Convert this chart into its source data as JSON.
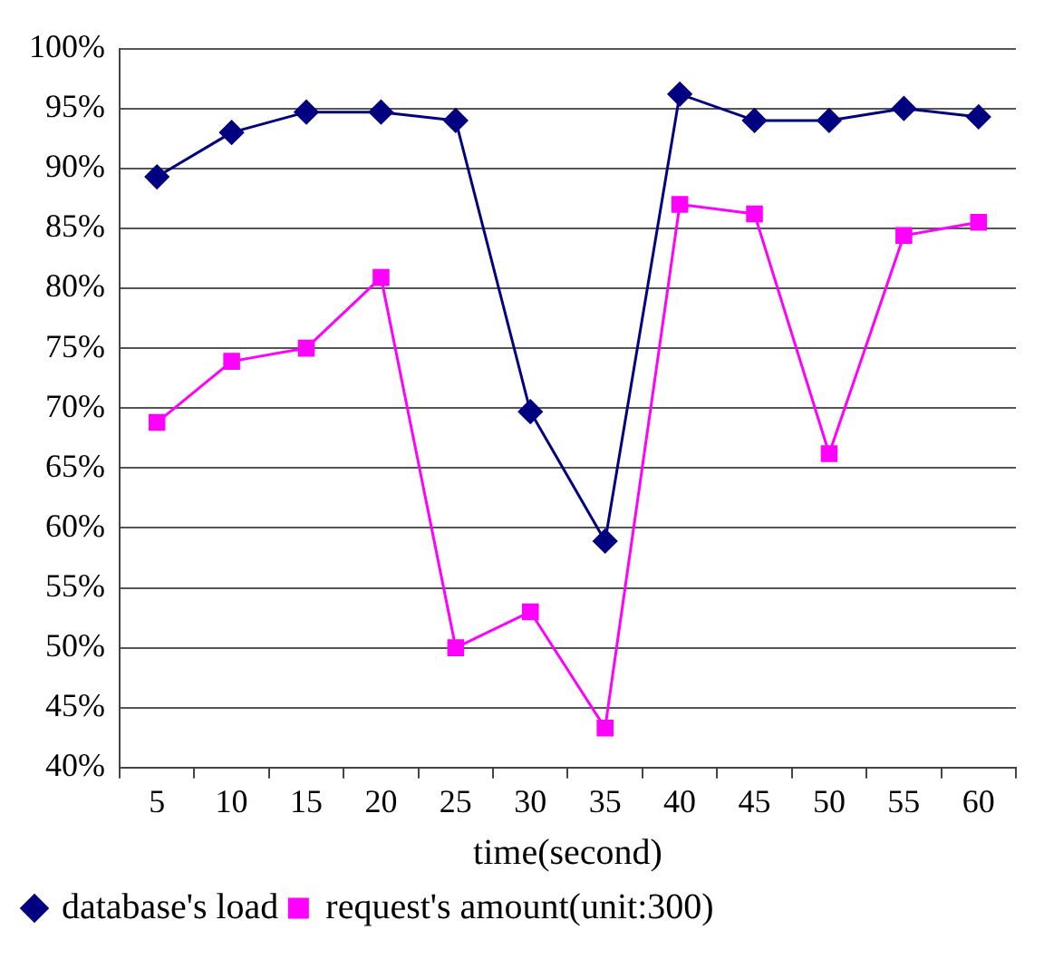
{
  "chart_data": {
    "type": "line",
    "xlabel": "time(second)",
    "categories": [
      "5",
      "10",
      "15",
      "20",
      "25",
      "30",
      "35",
      "40",
      "45",
      "50",
      "55",
      "60"
    ],
    "series": [
      {
        "name": "database's load",
        "color": "#000080",
        "marker": "diamond",
        "values": [
          89.3,
          93,
          94.7,
          94.7,
          94,
          69.7,
          58.9,
          96.2,
          94,
          94,
          95,
          94.3
        ]
      },
      {
        "name": "request's amount(unit:300)",
        "color": "#ff00ff",
        "marker": "square",
        "values": [
          68.8,
          73.9,
          75,
          80.9,
          50,
          53,
          43.3,
          87,
          86.2,
          66.2,
          84.4,
          85.5
        ]
      }
    ],
    "ylim": [
      40,
      100
    ],
    "yticks": [
      {
        "value": 40,
        "label": "40%"
      },
      {
        "value": 45,
        "label": "45%"
      },
      {
        "value": 50,
        "label": "50%"
      },
      {
        "value": 55,
        "label": "55%"
      },
      {
        "value": 60,
        "label": "60%"
      },
      {
        "value": 65,
        "label": "65%"
      },
      {
        "value": 70,
        "label": "70%"
      },
      {
        "value": 75,
        "label": "75%"
      },
      {
        "value": 80,
        "label": "80%"
      },
      {
        "value": 85,
        "label": "85%"
      },
      {
        "value": 90,
        "label": "90%"
      },
      {
        "value": 95,
        "label": "95%"
      },
      {
        "value": 100,
        "label": "100%"
      }
    ],
    "grid": "y",
    "legend": "bottom left",
    "line_style": "solid"
  }
}
